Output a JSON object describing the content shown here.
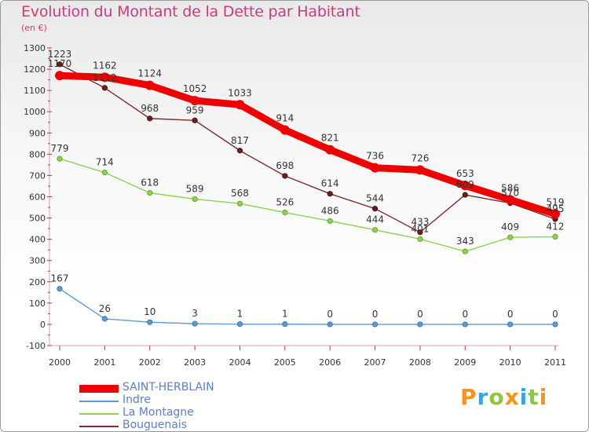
{
  "title": "Evolution du Montant de la Dette par Habitant",
  "subtitle": "(en €)",
  "chart_data": {
    "type": "line",
    "title": "Evolution du Montant de la Dette par Habitant",
    "ylabel": "(en €)",
    "xlabel": "",
    "x": [
      "2000",
      "2001",
      "2002",
      "2003",
      "2004",
      "2005",
      "2006",
      "2007",
      "2008",
      "2009",
      "2010",
      "2011"
    ],
    "ylim": [
      -100,
      1300
    ],
    "yticks": [
      -100,
      0,
      100,
      200,
      300,
      400,
      500,
      600,
      700,
      800,
      900,
      1000,
      1100,
      1200,
      1300
    ],
    "grid": false,
    "legend": "bottom-left",
    "series": [
      {
        "name": "SAINT-HERBLAIN",
        "color": "#ee0000",
        "values": [
          1170,
          1162,
          1124,
          1052,
          1033,
          914,
          821,
          736,
          726,
          653,
          586,
          519
        ]
      },
      {
        "name": "Indre",
        "color": "#5b9bd5",
        "values": [
          167,
          26,
          10,
          3,
          1,
          1,
          0,
          0,
          0,
          0,
          0,
          0
        ]
      },
      {
        "name": "La Montagne",
        "color": "#8fd14f",
        "values": [
          779,
          714,
          618,
          589,
          568,
          526,
          486,
          444,
          401,
          343,
          409,
          412
        ]
      },
      {
        "name": "Bouguenais",
        "color": "#7a2e2e",
        "values": [
          1223,
          1112,
          968,
          959,
          817,
          698,
          614,
          544,
          433,
          609,
          570,
          495
        ]
      }
    ]
  },
  "logo": {
    "letters": [
      "P",
      "r",
      "o",
      "x",
      "i",
      "t",
      "i"
    ],
    "colors": [
      "#f7941d",
      "#3aa5dc",
      "#8dc63f",
      "#f7941d",
      "#3aa5dc",
      "#8dc63f",
      "#f7941d"
    ]
  }
}
